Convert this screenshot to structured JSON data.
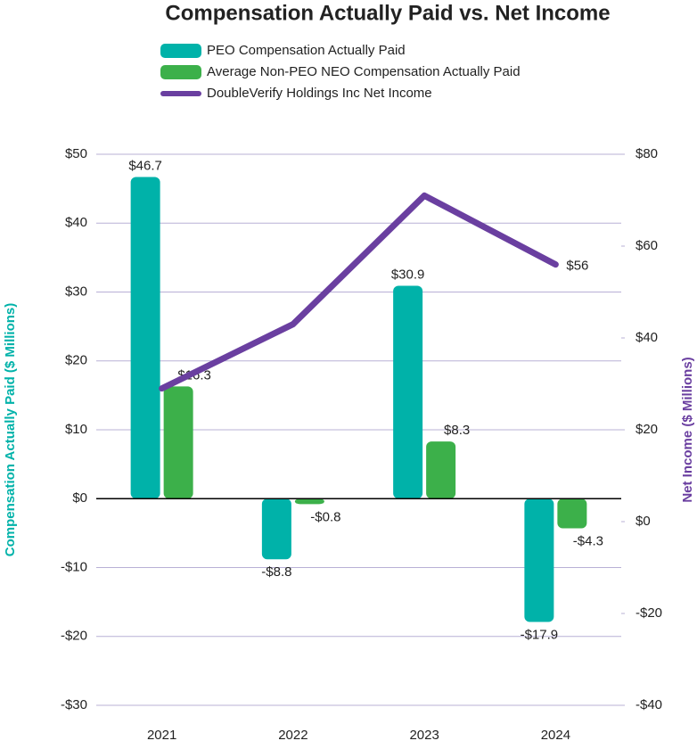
{
  "chart_data": {
    "type": "bar_line",
    "title": "Compensation Actually Paid vs. Net Income",
    "categories": [
      "2021",
      "2022",
      "2023",
      "2024"
    ],
    "series": [
      {
        "name": "PEO Compensation Actually Paid",
        "color": "#00b2a9",
        "values": [
          46.7,
          -8.8,
          30.9,
          -17.9
        ],
        "value_labels": [
          "$46.7",
          "-$8.8",
          "$30.9",
          "-$17.9"
        ]
      },
      {
        "name": "Average Non-PEO NEO Compensation Actually Paid",
        "color": "#3cb04a",
        "values": [
          16.3,
          -0.8,
          8.3,
          -4.3
        ],
        "value_labels": [
          "$16.3",
          "-$0.8",
          "$8.3",
          "-$4.3"
        ]
      },
      {
        "name": "DoubleVerify Holdings Inc Net Income",
        "color": "#6a3fa0",
        "axis": "y2",
        "type": "line",
        "values": [
          29,
          43,
          71,
          56
        ],
        "value_labels": [
          null,
          null,
          null,
          "$56"
        ]
      }
    ],
    "ylabel": "Compensation Actually Paid ($ Millions)",
    "y2label": "Net Income  ($ Millions)",
    "ylim": [
      -30,
      50
    ],
    "yticks": [
      {
        "value": -30,
        "label": "-$30"
      },
      {
        "value": -20,
        "label": "-$20"
      },
      {
        "value": -10,
        "label": "-$10"
      },
      {
        "value": 0,
        "label": "$0"
      },
      {
        "value": 10,
        "label": "$10"
      },
      {
        "value": 20,
        "label": "$20"
      },
      {
        "value": 30,
        "label": "$30"
      },
      {
        "value": 40,
        "label": "$40"
      },
      {
        "value": 50,
        "label": "$50"
      }
    ],
    "y2lim": [
      -40,
      80
    ],
    "y2ticks": [
      {
        "value": -40,
        "label": "-$40"
      },
      {
        "value": -20,
        "label": "-$20"
      },
      {
        "value": 0,
        "label": "$0"
      },
      {
        "value": 20,
        "label": "$20"
      },
      {
        "value": 40,
        "label": "$40"
      },
      {
        "value": 60,
        "label": "$60"
      },
      {
        "value": 80,
        "label": "$80"
      }
    ],
    "grid": true
  }
}
